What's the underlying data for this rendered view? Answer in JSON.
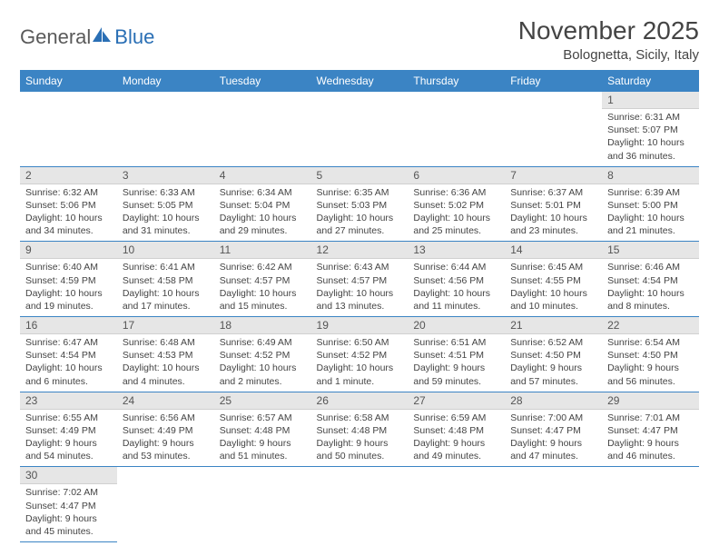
{
  "logo": {
    "part1": "General",
    "part2": "Blue"
  },
  "title": "November 2025",
  "location": "Bolognetta, Sicily, Italy",
  "colors": {
    "header_bg": "#3b84c4",
    "header_text": "#ffffff",
    "daynum_bg": "#e6e6e6",
    "row_divider": "#3b84c4",
    "body_text": "#444444",
    "logo_gray": "#5a5a5a",
    "logo_blue": "#2a6fb5"
  },
  "weekdays": [
    "Sunday",
    "Monday",
    "Tuesday",
    "Wednesday",
    "Thursday",
    "Friday",
    "Saturday"
  ],
  "weeks": [
    [
      {
        "empty": true
      },
      {
        "empty": true
      },
      {
        "empty": true
      },
      {
        "empty": true
      },
      {
        "empty": true
      },
      {
        "empty": true
      },
      {
        "day": "1",
        "sunrise": "Sunrise: 6:31 AM",
        "sunset": "Sunset: 5:07 PM",
        "daylight": "Daylight: 10 hours and 36 minutes."
      }
    ],
    [
      {
        "day": "2",
        "sunrise": "Sunrise: 6:32 AM",
        "sunset": "Sunset: 5:06 PM",
        "daylight": "Daylight: 10 hours and 34 minutes."
      },
      {
        "day": "3",
        "sunrise": "Sunrise: 6:33 AM",
        "sunset": "Sunset: 5:05 PM",
        "daylight": "Daylight: 10 hours and 31 minutes."
      },
      {
        "day": "4",
        "sunrise": "Sunrise: 6:34 AM",
        "sunset": "Sunset: 5:04 PM",
        "daylight": "Daylight: 10 hours and 29 minutes."
      },
      {
        "day": "5",
        "sunrise": "Sunrise: 6:35 AM",
        "sunset": "Sunset: 5:03 PM",
        "daylight": "Daylight: 10 hours and 27 minutes."
      },
      {
        "day": "6",
        "sunrise": "Sunrise: 6:36 AM",
        "sunset": "Sunset: 5:02 PM",
        "daylight": "Daylight: 10 hours and 25 minutes."
      },
      {
        "day": "7",
        "sunrise": "Sunrise: 6:37 AM",
        "sunset": "Sunset: 5:01 PM",
        "daylight": "Daylight: 10 hours and 23 minutes."
      },
      {
        "day": "8",
        "sunrise": "Sunrise: 6:39 AM",
        "sunset": "Sunset: 5:00 PM",
        "daylight": "Daylight: 10 hours and 21 minutes."
      }
    ],
    [
      {
        "day": "9",
        "sunrise": "Sunrise: 6:40 AM",
        "sunset": "Sunset: 4:59 PM",
        "daylight": "Daylight: 10 hours and 19 minutes."
      },
      {
        "day": "10",
        "sunrise": "Sunrise: 6:41 AM",
        "sunset": "Sunset: 4:58 PM",
        "daylight": "Daylight: 10 hours and 17 minutes."
      },
      {
        "day": "11",
        "sunrise": "Sunrise: 6:42 AM",
        "sunset": "Sunset: 4:57 PM",
        "daylight": "Daylight: 10 hours and 15 minutes."
      },
      {
        "day": "12",
        "sunrise": "Sunrise: 6:43 AM",
        "sunset": "Sunset: 4:57 PM",
        "daylight": "Daylight: 10 hours and 13 minutes."
      },
      {
        "day": "13",
        "sunrise": "Sunrise: 6:44 AM",
        "sunset": "Sunset: 4:56 PM",
        "daylight": "Daylight: 10 hours and 11 minutes."
      },
      {
        "day": "14",
        "sunrise": "Sunrise: 6:45 AM",
        "sunset": "Sunset: 4:55 PM",
        "daylight": "Daylight: 10 hours and 10 minutes."
      },
      {
        "day": "15",
        "sunrise": "Sunrise: 6:46 AM",
        "sunset": "Sunset: 4:54 PM",
        "daylight": "Daylight: 10 hours and 8 minutes."
      }
    ],
    [
      {
        "day": "16",
        "sunrise": "Sunrise: 6:47 AM",
        "sunset": "Sunset: 4:54 PM",
        "daylight": "Daylight: 10 hours and 6 minutes."
      },
      {
        "day": "17",
        "sunrise": "Sunrise: 6:48 AM",
        "sunset": "Sunset: 4:53 PM",
        "daylight": "Daylight: 10 hours and 4 minutes."
      },
      {
        "day": "18",
        "sunrise": "Sunrise: 6:49 AM",
        "sunset": "Sunset: 4:52 PM",
        "daylight": "Daylight: 10 hours and 2 minutes."
      },
      {
        "day": "19",
        "sunrise": "Sunrise: 6:50 AM",
        "sunset": "Sunset: 4:52 PM",
        "daylight": "Daylight: 10 hours and 1 minute."
      },
      {
        "day": "20",
        "sunrise": "Sunrise: 6:51 AM",
        "sunset": "Sunset: 4:51 PM",
        "daylight": "Daylight: 9 hours and 59 minutes."
      },
      {
        "day": "21",
        "sunrise": "Sunrise: 6:52 AM",
        "sunset": "Sunset: 4:50 PM",
        "daylight": "Daylight: 9 hours and 57 minutes."
      },
      {
        "day": "22",
        "sunrise": "Sunrise: 6:54 AM",
        "sunset": "Sunset: 4:50 PM",
        "daylight": "Daylight: 9 hours and 56 minutes."
      }
    ],
    [
      {
        "day": "23",
        "sunrise": "Sunrise: 6:55 AM",
        "sunset": "Sunset: 4:49 PM",
        "daylight": "Daylight: 9 hours and 54 minutes."
      },
      {
        "day": "24",
        "sunrise": "Sunrise: 6:56 AM",
        "sunset": "Sunset: 4:49 PM",
        "daylight": "Daylight: 9 hours and 53 minutes."
      },
      {
        "day": "25",
        "sunrise": "Sunrise: 6:57 AM",
        "sunset": "Sunset: 4:48 PM",
        "daylight": "Daylight: 9 hours and 51 minutes."
      },
      {
        "day": "26",
        "sunrise": "Sunrise: 6:58 AM",
        "sunset": "Sunset: 4:48 PM",
        "daylight": "Daylight: 9 hours and 50 minutes."
      },
      {
        "day": "27",
        "sunrise": "Sunrise: 6:59 AM",
        "sunset": "Sunset: 4:48 PM",
        "daylight": "Daylight: 9 hours and 49 minutes."
      },
      {
        "day": "28",
        "sunrise": "Sunrise: 7:00 AM",
        "sunset": "Sunset: 4:47 PM",
        "daylight": "Daylight: 9 hours and 47 minutes."
      },
      {
        "day": "29",
        "sunrise": "Sunrise: 7:01 AM",
        "sunset": "Sunset: 4:47 PM",
        "daylight": "Daylight: 9 hours and 46 minutes."
      }
    ],
    [
      {
        "day": "30",
        "sunrise": "Sunrise: 7:02 AM",
        "sunset": "Sunset: 4:47 PM",
        "daylight": "Daylight: 9 hours and 45 minutes."
      },
      {
        "empty": true
      },
      {
        "empty": true
      },
      {
        "empty": true
      },
      {
        "empty": true
      },
      {
        "empty": true
      },
      {
        "empty": true
      }
    ]
  ]
}
